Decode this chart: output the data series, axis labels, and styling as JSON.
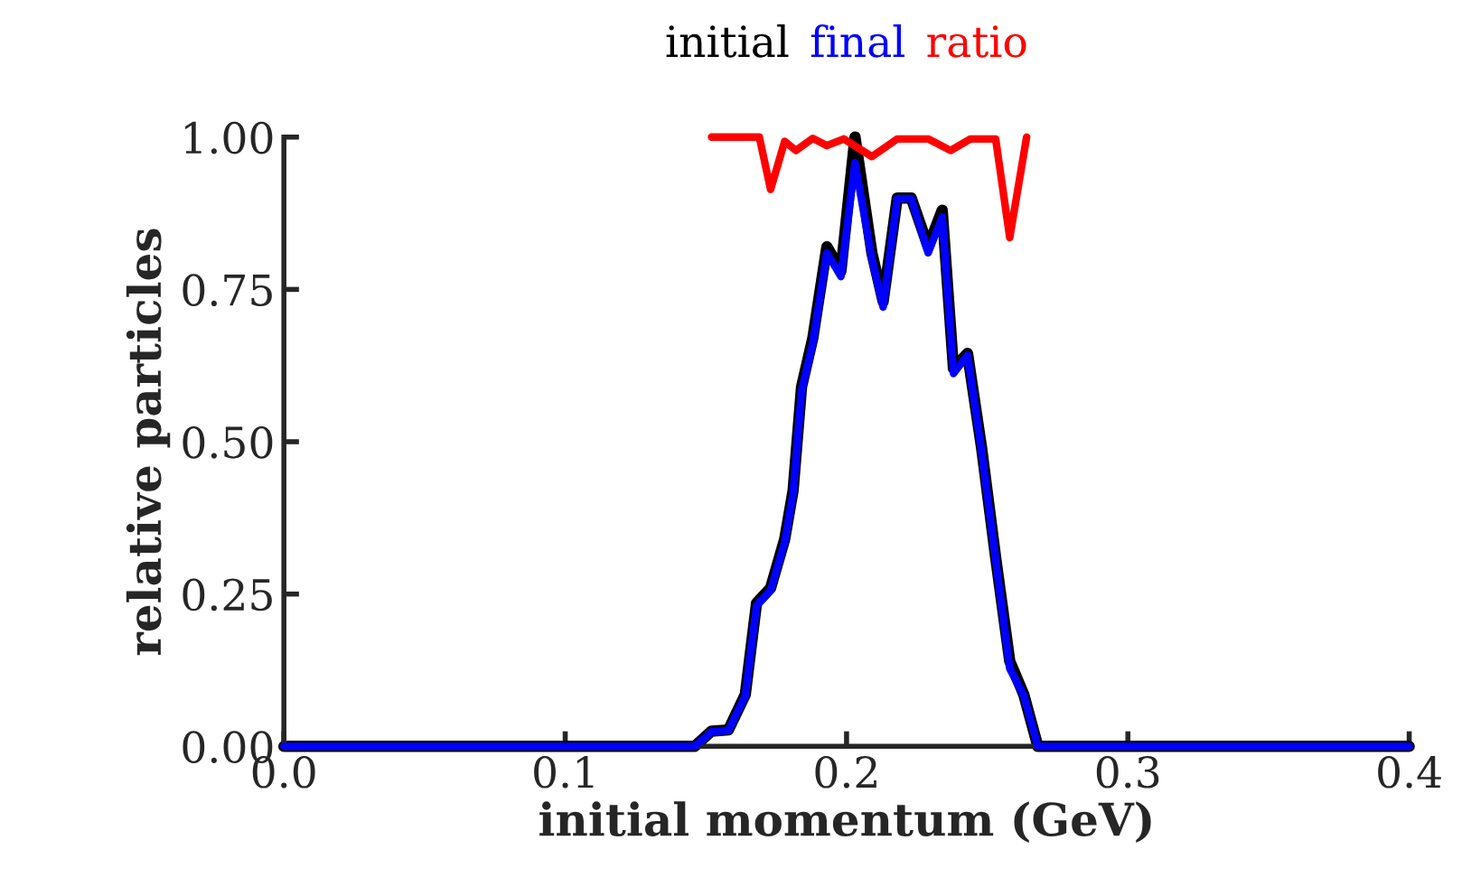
{
  "chart_data": {
    "type": "line",
    "xlabel": "initial momentum (GeV)",
    "ylabel": "relative particles",
    "legend": "top",
    "grid": false,
    "line_style": "solid",
    "marker": "none",
    "xlim": [
      0.0,
      0.4
    ],
    "xticks": [
      {
        "value": 0.0,
        "label": "0.0"
      },
      {
        "value": 0.1,
        "label": "0.1"
      },
      {
        "value": 0.2,
        "label": "0.2"
      },
      {
        "value": 0.3,
        "label": "0.3"
      },
      {
        "value": 0.4,
        "label": "0.4"
      }
    ],
    "ylim": [
      0.0,
      1.0
    ],
    "yticks": [
      {
        "value": 0.0,
        "label": "0.00"
      },
      {
        "value": 0.25,
        "label": "0.25"
      },
      {
        "value": 0.5,
        "label": "0.50"
      },
      {
        "value": 0.75,
        "label": "0.75"
      },
      {
        "value": 1.0,
        "label": "1.00"
      }
    ],
    "series": [
      {
        "name": "initial",
        "color": "#000000",
        "x": [
          0.0,
          0.146,
          0.152,
          0.158,
          0.164,
          0.168,
          0.173,
          0.178,
          0.181,
          0.184,
          0.188,
          0.193,
          0.198,
          0.203,
          0.209,
          0.213,
          0.218,
          0.223,
          0.229,
          0.234,
          0.238,
          0.243,
          0.248,
          0.253,
          0.258,
          0.263,
          0.268,
          0.4
        ],
        "values": [
          0,
          0,
          0.025,
          0.027,
          0.085,
          0.235,
          0.26,
          0.34,
          0.42,
          0.59,
          0.67,
          0.82,
          0.78,
          1.0,
          0.81,
          0.73,
          0.9,
          0.9,
          0.82,
          0.88,
          0.62,
          0.645,
          0.49,
          0.31,
          0.14,
          0.085,
          0,
          0
        ]
      },
      {
        "name": "final",
        "color": "#0000ff",
        "x": [
          0.0,
          0.146,
          0.152,
          0.158,
          0.164,
          0.168,
          0.173,
          0.178,
          0.181,
          0.184,
          0.188,
          0.193,
          0.198,
          0.203,
          0.209,
          0.213,
          0.218,
          0.223,
          0.229,
          0.234,
          0.238,
          0.243,
          0.248,
          0.253,
          0.258,
          0.263,
          0.268,
          0.4
        ],
        "values": [
          0,
          0,
          0.024,
          0.026,
          0.083,
          0.231,
          0.256,
          0.335,
          0.415,
          0.583,
          0.662,
          0.81,
          0.771,
          0.958,
          0.8,
          0.721,
          0.899,
          0.899,
          0.81,
          0.869,
          0.612,
          0.642,
          0.484,
          0.306,
          0.128,
          0.083,
          0,
          0
        ]
      },
      {
        "name": "ratio",
        "color": "#ff0000",
        "x": [
          0.152,
          0.169,
          0.173,
          0.178,
          0.182,
          0.188,
          0.193,
          0.199,
          0.209,
          0.218,
          0.229,
          0.237,
          0.244,
          0.253,
          0.258,
          0.264
        ],
        "values": [
          1.0,
          1.0,
          0.914,
          0.993,
          0.978,
          0.998,
          0.986,
          0.997,
          0.968,
          0.997,
          0.997,
          0.978,
          0.997,
          0.997,
          0.835,
          1.0
        ]
      }
    ]
  }
}
